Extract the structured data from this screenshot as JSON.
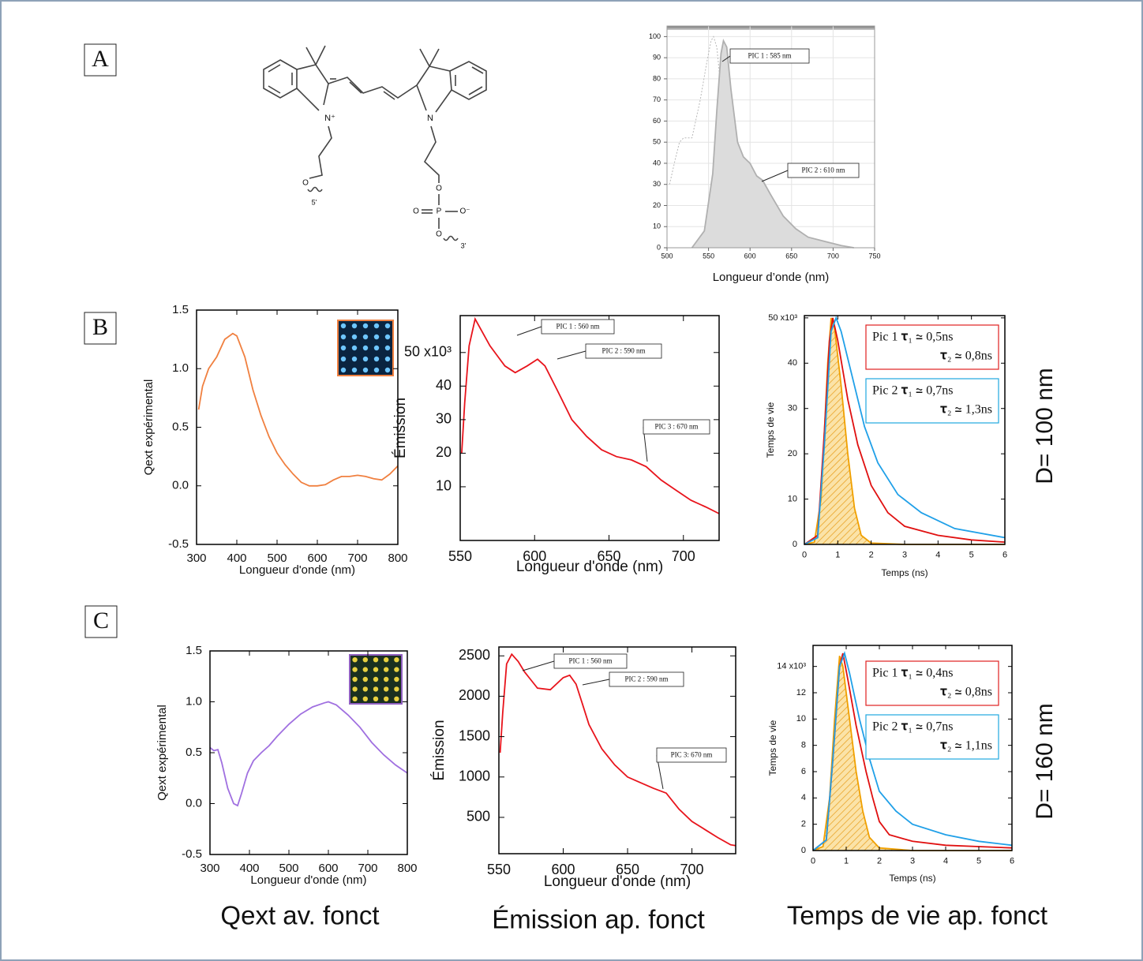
{
  "panel_labels": [
    "A",
    "B",
    "C"
  ],
  "row_labels": [
    "D= 100 nm",
    "D= 160 nm"
  ],
  "captions": [
    "Qext av. fonct",
    "Émission ap. fonct",
    "Temps de vie ap. fonct"
  ],
  "molecule": {
    "atoms": [
      "N⁺",
      "N",
      "O",
      "5'",
      "O",
      "P",
      "O",
      "O⁻",
      "O",
      "3'"
    ]
  },
  "chart_data": [
    {
      "type": "line",
      "xlabel": "Longueur d’onde (nm)",
      "grid": true,
      "xlim": [
        500,
        750
      ],
      "xticks": [
        500,
        550,
        600,
        650,
        700,
        750
      ],
      "ylim": [
        0,
        105
      ],
      "yticks": [
        0,
        10,
        20,
        30,
        40,
        50,
        60,
        70,
        80,
        90,
        100
      ],
      "annotations": [
        "PIC 1 : 585 nm",
        "PIC 2 : 610 nm"
      ],
      "series": [
        {
          "color": "#b8b8b8",
          "dash": true,
          "x": [
            503,
            510,
            515,
            520,
            530,
            540,
            548,
            553,
            556,
            560,
            565,
            570,
            575,
            580,
            585,
            595
          ],
          "values": [
            30,
            42,
            50,
            52,
            52,
            70,
            88,
            98,
            100,
            95,
            75,
            45,
            20,
            8,
            3,
            0
          ]
        },
        {
          "color": "#b0b0b0",
          "fill": "#dcdcdc",
          "x": [
            530,
            545,
            555,
            560,
            565,
            568,
            572,
            577,
            585,
            592,
            600,
            608,
            615,
            625,
            640,
            655,
            670,
            690,
            710,
            725
          ],
          "values": [
            0,
            8,
            35,
            65,
            92,
            98,
            95,
            75,
            50,
            43,
            40,
            34,
            32,
            25,
            15,
            9,
            5,
            3,
            1,
            0
          ]
        }
      ]
    },
    {
      "type": "line",
      "xlabel": "Longueur d'onde (nm)",
      "ylabel": "Qext expérimental",
      "xlim": [
        300,
        800
      ],
      "xticks": [
        300,
        400,
        500,
        600,
        700,
        800
      ],
      "ylim": [
        -0.5,
        1.5
      ],
      "yticks": [
        -0.5,
        {
          "value": 0,
          "label": "0.0"
        },
        0.5,
        {
          "value": 1,
          "label": "1.0"
        },
        1.5
      ],
      "series": [
        {
          "color": "#f08040",
          "x": [
            305,
            315,
            330,
            350,
            370,
            390,
            400,
            420,
            440,
            460,
            480,
            500,
            520,
            540,
            560,
            580,
            600,
            620,
            640,
            660,
            680,
            700,
            720,
            740,
            760,
            780,
            800
          ],
          "values": [
            0.65,
            0.85,
            1.0,
            1.1,
            1.25,
            1.3,
            1.28,
            1.1,
            0.82,
            0.6,
            0.42,
            0.28,
            0.18,
            0.1,
            0.03,
            0.0,
            0.0,
            0.01,
            0.05,
            0.08,
            0.08,
            0.09,
            0.08,
            0.06,
            0.05,
            0.1,
            0.17
          ]
        }
      ]
    },
    {
      "type": "line",
      "xlabel": "Longueur d'onde (nm)",
      "ylabel": "Émission",
      "xlim": [
        550,
        724
      ],
      "xticks": [
        550,
        600,
        650,
        700
      ],
      "ylim": [
        -6,
        61
      ],
      "yticks": [
        10,
        20,
        30,
        40,
        {
          "value": 50,
          "label": "50 x10³"
        }
      ],
      "annotations": [
        "PIC 1 : 560 nm",
        "PIC 2 : 590 nm",
        "PIC 3 : 670 nm"
      ],
      "series": [
        {
          "color": "#e8141c",
          "x": [
            551,
            553,
            556,
            560,
            565,
            570,
            575,
            580,
            587,
            595,
            602,
            607,
            615,
            625,
            635,
            645,
            655,
            665,
            675,
            685,
            695,
            705,
            715,
            724
          ],
          "values": [
            20,
            35,
            52,
            60,
            56,
            52,
            49,
            46,
            44,
            46,
            48,
            46,
            39,
            30,
            25,
            21,
            19,
            18,
            16,
            12,
            9,
            6,
            4,
            2
          ]
        }
      ]
    },
    {
      "type": "line",
      "xlabel": "Temps (ns)",
      "ylabel": "Temps de vie",
      "xlim": [
        0,
        6
      ],
      "xticks": [
        0,
        1,
        2,
        3,
        4,
        5,
        6
      ],
      "ylim": [
        0,
        50.5
      ],
      "yticks": [
        0,
        10,
        20,
        30,
        40,
        {
          "value": 50,
          "label": "50 x10³"
        }
      ],
      "annotations": [
        {
          "color": "#e02020",
          "lines": [
            "Pic 1 𝛕₁ ≃ 0,5ns",
            "𝛕₂ ≃ 0,8ns"
          ]
        },
        {
          "color": "#20a8e0",
          "lines": [
            "Pic 2 𝛕₁ ≃ 0,7ns",
            "𝛕₂ ≃ 1,3ns"
          ]
        }
      ],
      "series": [
        {
          "color": "#f0a000",
          "fill": "hatch",
          "x": [
            0,
            0.3,
            0.5,
            0.7,
            0.8,
            0.9,
            1.1,
            1.3,
            1.5,
            1.7,
            2.0,
            3,
            6
          ],
          "values": [
            0,
            0.5,
            10,
            40,
            50,
            48,
            35,
            20,
            8,
            2,
            0.3,
            0,
            0
          ]
        },
        {
          "color": "#e01010",
          "x": [
            0,
            0.4,
            0.6,
            0.75,
            0.85,
            1.0,
            1.3,
            1.6,
            2,
            2.5,
            3,
            4,
            5,
            6
          ],
          "values": [
            0,
            2,
            25,
            45,
            50,
            45,
            32,
            22,
            13,
            7,
            4,
            2,
            1,
            0.5
          ]
        },
        {
          "color": "#20a0e8",
          "x": [
            0,
            0.4,
            0.6,
            0.8,
            0.95,
            1.1,
            1.4,
            1.8,
            2.2,
            2.8,
            3.5,
            4.5,
            6
          ],
          "values": [
            0,
            1.5,
            22,
            47,
            50,
            47,
            38,
            26,
            18,
            11,
            7,
            3.5,
            1.5
          ]
        }
      ]
    },
    {
      "type": "line",
      "xlabel": "Longueur d'onde (nm)",
      "ylabel": "Qext expérimental",
      "xlim": [
        300,
        800
      ],
      "xticks": [
        300,
        400,
        500,
        600,
        700,
        800
      ],
      "ylim": [
        -0.5,
        1.5
      ],
      "yticks": [
        -0.5,
        {
          "value": 0,
          "label": "0.0"
        },
        0.5,
        {
          "value": 1,
          "label": "1.0"
        },
        1.5
      ],
      "series": [
        {
          "color": "#a070e0",
          "x": [
            300,
            310,
            320,
            330,
            345,
            360,
            370,
            380,
            395,
            410,
            430,
            450,
            470,
            500,
            530,
            560,
            590,
            600,
            620,
            650,
            680,
            710,
            740,
            770,
            800
          ],
          "values": [
            0.55,
            0.52,
            0.53,
            0.4,
            0.15,
            0.0,
            -0.02,
            0.1,
            0.3,
            0.42,
            0.5,
            0.57,
            0.66,
            0.78,
            0.88,
            0.95,
            0.99,
            1.0,
            0.97,
            0.87,
            0.75,
            0.6,
            0.48,
            0.38,
            0.3
          ]
        }
      ]
    },
    {
      "type": "line",
      "xlabel": "Longueur d'onde (nm)",
      "ylabel": "Émission",
      "xlim": [
        550,
        734
      ],
      "xticks": [
        550,
        600,
        650,
        700
      ],
      "ylim": [
        50,
        2610
      ],
      "yticks": [
        500,
        1000,
        1500,
        2000,
        2500
      ],
      "annotations": [
        "PIC 1 : 560 nm",
        "PIC 2 : 590 nm",
        "PIC 3: 670 nm"
      ],
      "series": [
        {
          "color": "#e8141c",
          "x": [
            551,
            553,
            556,
            560,
            565,
            570,
            575,
            580,
            590,
            600,
            605,
            610,
            615,
            620,
            630,
            640,
            650,
            660,
            670,
            680,
            690,
            700,
            710,
            720,
            730,
            734
          ],
          "values": [
            1300,
            1800,
            2400,
            2520,
            2430,
            2300,
            2200,
            2100,
            2080,
            2230,
            2260,
            2150,
            1900,
            1650,
            1350,
            1150,
            1000,
            930,
            860,
            800,
            600,
            450,
            350,
            250,
            160,
            150
          ]
        }
      ]
    },
    {
      "type": "line",
      "xlabel": "Temps (ns)",
      "ylabel": "Temps de vie",
      "xlim": [
        0,
        6
      ],
      "xticks": [
        0,
        1,
        2,
        3,
        4,
        5,
        6
      ],
      "ylim": [
        0,
        15.6
      ],
      "yticks": [
        0,
        2,
        4,
        6,
        8,
        10,
        12,
        {
          "value": 14,
          "label": "14 x10³"
        }
      ],
      "annotations": [
        {
          "color": "#e02020",
          "lines": [
            "Pic 1 𝛕₁ ≃ 0,4ns",
            "𝛕₂ ≃ 0,8ns"
          ]
        },
        {
          "color": "#20a8e0",
          "lines": [
            "Pic 2 𝛕₁ ≃ 0,7ns",
            "𝛕₂ ≃ 1,1ns"
          ]
        }
      ],
      "series": [
        {
          "color": "#f0a000",
          "fill": "hatch",
          "x": [
            0,
            0.3,
            0.5,
            0.65,
            0.8,
            0.9,
            1.1,
            1.3,
            1.5,
            1.7,
            2,
            3,
            6
          ],
          "values": [
            0,
            0.3,
            4,
            10,
            14.8,
            14,
            10,
            6,
            3,
            1,
            0.2,
            0,
            0
          ]
        },
        {
          "color": "#e01010",
          "x": [
            0,
            0.4,
            0.6,
            0.8,
            0.9,
            1.05,
            1.3,
            1.6,
            1.8,
            2,
            2.3,
            3,
            4,
            5,
            6
          ],
          "values": [
            0,
            0.8,
            7,
            14,
            15,
            13,
            9.5,
            6,
            4,
            2.2,
            1.2,
            0.7,
            0.4,
            0.3,
            0.2
          ]
        },
        {
          "color": "#20a0e8",
          "x": [
            0,
            0.4,
            0.6,
            0.8,
            0.95,
            1.1,
            1.4,
            1.7,
            2,
            2.5,
            3,
            4,
            5,
            6
          ],
          "values": [
            0,
            0.8,
            7,
            14,
            15,
            13.5,
            10,
            7,
            4.5,
            3,
            2,
            1.2,
            0.7,
            0.4
          ]
        }
      ]
    }
  ]
}
